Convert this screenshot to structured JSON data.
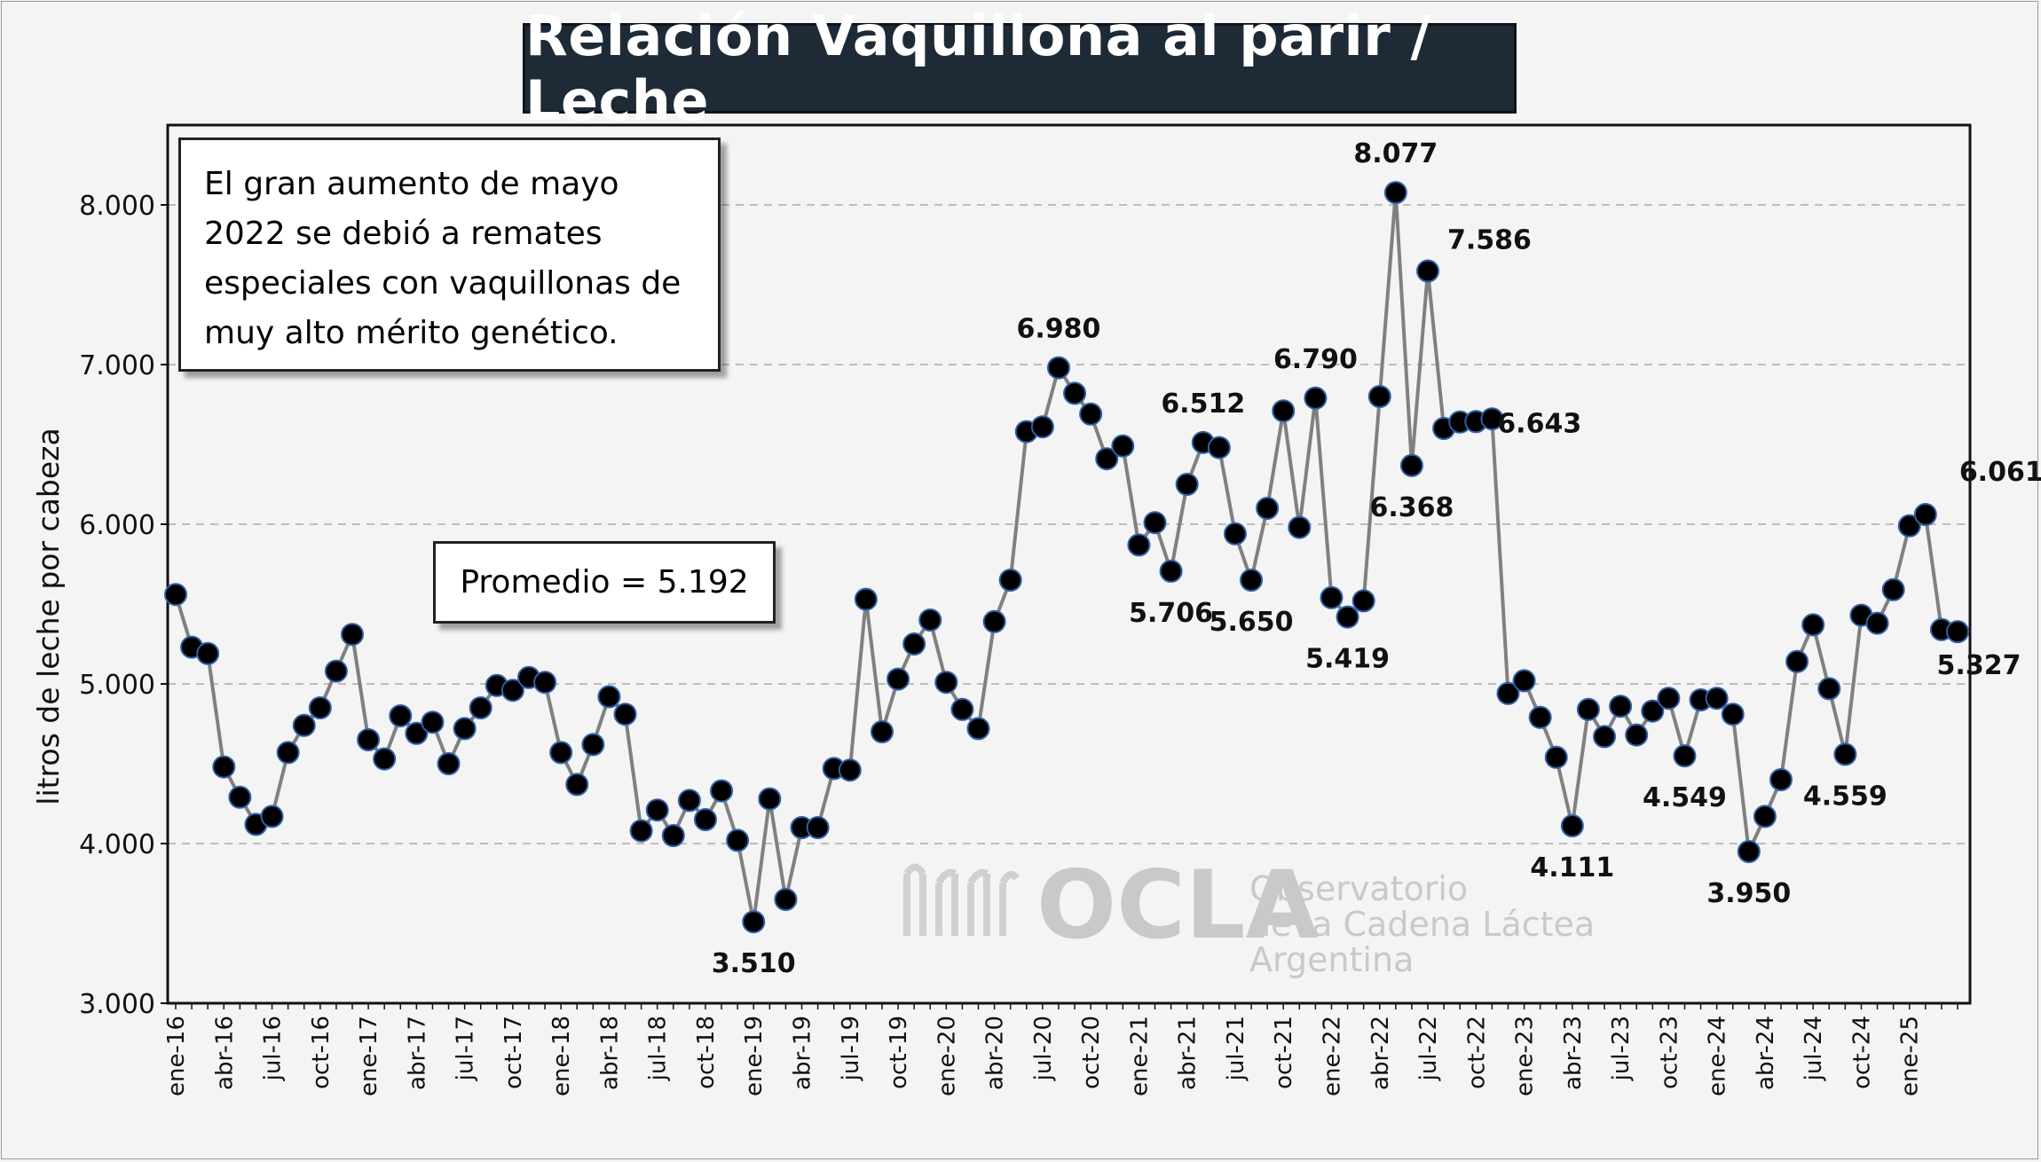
{
  "title": "Relación Vaquillona al parir / Leche",
  "note_genetic": "El gran  aumento de mayo 2022 se debió a remates especiales con vaquillonas de muy alto mérito genético.",
  "note_average": "Promedio = 5.192",
  "watermark": {
    "brand": "OCLA",
    "line1": "Observatorio",
    "line2": "de la Cadena Láctea",
    "line3": "Argentina"
  },
  "chart_data": {
    "type": "line",
    "title": "Relación Vaquillona al parir / Leche",
    "ylabel": "litros de leche por cabeza",
    "xlabel": "",
    "ylim": [
      3000,
      8500
    ],
    "yticks": [
      3000,
      4000,
      5000,
      6000,
      7000,
      8000
    ],
    "ytick_labels": [
      "3.000",
      "4.000",
      "5.000",
      "6.000",
      "7.000",
      "8.000"
    ],
    "grid": "horizontal dashed",
    "line_color": "#808080",
    "marker_color": "#000000",
    "marker_edge_color": "#2f5fa8",
    "xtick_labels": [
      "ene-16",
      "abr-16",
      "jul-16",
      "oct-16",
      "ene-17",
      "abr-17",
      "jul-17",
      "oct-17",
      "ene-18",
      "abr-18",
      "jul-18",
      "oct-18",
      "ene-19",
      "abr-19",
      "jul-19",
      "oct-19",
      "ene-20",
      "abr-20",
      "jul-20",
      "oct-20",
      "ene-21",
      "abr-21",
      "jul-21",
      "oct-21",
      "ene-22",
      "abr-22",
      "jul-22",
      "oct-22",
      "ene-23",
      "abr-23",
      "jul-23",
      "oct-23",
      "ene-24",
      "abr-24",
      "jul-24",
      "oct-24",
      "ene-25"
    ],
    "series": [
      {
        "values": [
          5560,
          5230,
          5190,
          4480,
          4290,
          4120,
          4170,
          4570,
          4740,
          4850,
          5080,
          5310,
          4650,
          4530,
          4800,
          4690,
          4760,
          4500,
          4720,
          4850,
          4990,
          4960,
          5040,
          5010,
          4570,
          4370,
          4620,
          4920,
          4810,
          4080,
          4210,
          4050,
          4270,
          4150,
          4330,
          4020,
          3510,
          4280,
          3650,
          4100,
          4100,
          4470,
          4460,
          5530,
          4700,
          5030,
          5250,
          5400,
          5010,
          4840,
          4720,
          5390,
          5650,
          6580,
          6610,
          6980,
          6820,
          6690,
          6410,
          6490,
          5870,
          6010,
          5706,
          6250,
          6512,
          6480,
          5940,
          5650,
          6100,
          6710,
          5980,
          6790,
          5540,
          5419,
          5520,
          6800,
          8077,
          6368,
          7586,
          6600,
          6640,
          6643,
          6660,
          4940,
          5020,
          4790,
          4540,
          4111,
          4840,
          4670,
          4860,
          4680,
          4830,
          4910,
          4549,
          4900,
          4910,
          4810,
          3950,
          4170,
          4400,
          5140,
          5370,
          4970,
          4559,
          5430,
          5380,
          5590,
          5990,
          6061,
          5340,
          5327
        ]
      }
    ],
    "annotations": [
      {
        "index": 36,
        "text": "3.510",
        "pos": "below"
      },
      {
        "index": 55,
        "text": "6.980",
        "pos": "above"
      },
      {
        "index": 62,
        "text": "5.706",
        "pos": "below"
      },
      {
        "index": 64,
        "text": "6.512",
        "pos": "above"
      },
      {
        "index": 67,
        "text": "5.650",
        "pos": "below"
      },
      {
        "index": 71,
        "text": "6.790",
        "pos": "above"
      },
      {
        "index": 73,
        "text": "5.419",
        "pos": "below"
      },
      {
        "index": 76,
        "text": "8.077",
        "pos": "above"
      },
      {
        "index": 77,
        "text": "6.368",
        "pos": "below"
      },
      {
        "index": 78,
        "text": "7.586",
        "pos": "right"
      },
      {
        "index": 81,
        "text": "6.643",
        "pos": "right"
      },
      {
        "index": 87,
        "text": "4.111",
        "pos": "below"
      },
      {
        "index": 94,
        "text": "4.549",
        "pos": "below"
      },
      {
        "index": 98,
        "text": "3.950",
        "pos": "below"
      },
      {
        "index": 104,
        "text": "4.559",
        "pos": "below"
      },
      {
        "index": 109,
        "text": "6.061",
        "pos": "upper-right"
      },
      {
        "index": 111,
        "text": "5.327",
        "pos": "below"
      }
    ]
  }
}
